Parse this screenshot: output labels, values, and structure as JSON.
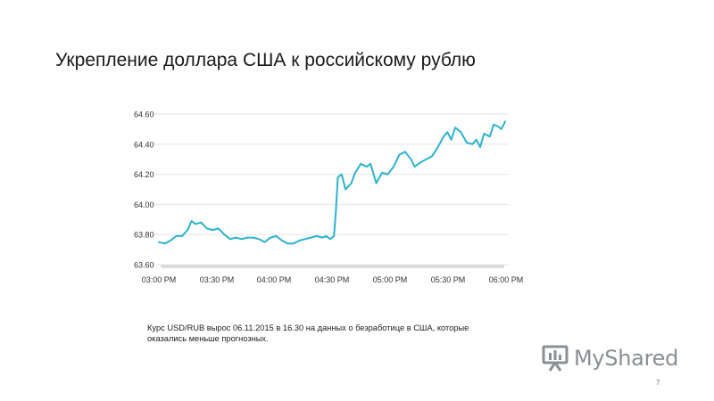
{
  "slide": {
    "title": "Укрепление доллара США к российскому рублю",
    "caption": "Курс USD/RUB вырос 06.11.2015 в 16.30 на данных о безработице в США, которые оказались меньше прогнозных.",
    "page_number": "7",
    "logo_text": "MyShared"
  },
  "colors": {
    "line": "#2bb3d1",
    "grid": "#e6e6e6",
    "text": "#333333",
    "scrollbar": "#dcdcdc"
  },
  "chart_data": {
    "type": "line",
    "title": "",
    "xlabel": "",
    "ylabel": "",
    "ylim": [
      63.6,
      64.6
    ],
    "yticks": [
      "64.60",
      "64.40",
      "64.20",
      "64.00",
      "63.80",
      "63.60"
    ],
    "xticks": [
      "03:00 PM",
      "03:30 PM",
      "04:00 PM",
      "04:30 PM",
      "05:00 PM",
      "05:30 PM",
      "06:00 PM"
    ],
    "grid": "horizontal",
    "x_start": "15:00",
    "series": [
      {
        "name": "",
        "points": [
          [
            "15:00",
            63.75
          ],
          [
            "15:03",
            63.74
          ],
          [
            "15:06",
            63.76
          ],
          [
            "15:09",
            63.79
          ],
          [
            "15:12",
            63.79
          ],
          [
            "15:15",
            63.83
          ],
          [
            "15:17",
            63.89
          ],
          [
            "15:19",
            63.87
          ],
          [
            "15:22",
            63.88
          ],
          [
            "15:25",
            63.84
          ],
          [
            "15:28",
            63.83
          ],
          [
            "15:31",
            63.84
          ],
          [
            "15:34",
            63.8
          ],
          [
            "15:37",
            63.77
          ],
          [
            "15:40",
            63.78
          ],
          [
            "15:43",
            63.77
          ],
          [
            "15:46",
            63.78
          ],
          [
            "15:49",
            63.78
          ],
          [
            "15:52",
            63.77
          ],
          [
            "15:55",
            63.75
          ],
          [
            "15:58",
            63.78
          ],
          [
            "16:01",
            63.79
          ],
          [
            "16:04",
            63.76
          ],
          [
            "16:07",
            63.74
          ],
          [
            "16:10",
            63.74
          ],
          [
            "16:13",
            63.76
          ],
          [
            "16:16",
            63.77
          ],
          [
            "16:19",
            63.78
          ],
          [
            "16:22",
            63.79
          ],
          [
            "16:25",
            63.78
          ],
          [
            "16:27",
            63.79
          ],
          [
            "16:29",
            63.77
          ],
          [
            "16:31",
            63.79
          ],
          [
            "16:32",
            63.95
          ],
          [
            "16:33",
            64.18
          ],
          [
            "16:35",
            64.2
          ],
          [
            "16:37",
            64.1
          ],
          [
            "16:40",
            64.14
          ],
          [
            "16:42",
            64.21
          ],
          [
            "16:45",
            64.27
          ],
          [
            "16:48",
            64.25
          ],
          [
            "16:50",
            64.27
          ],
          [
            "16:53",
            64.14
          ],
          [
            "16:56",
            64.21
          ],
          [
            "16:59",
            64.2
          ],
          [
            "17:02",
            64.25
          ],
          [
            "17:05",
            64.33
          ],
          [
            "17:08",
            64.35
          ],
          [
            "17:11",
            64.3
          ],
          [
            "17:13",
            64.25
          ],
          [
            "17:16",
            64.28
          ],
          [
            "17:19",
            64.3
          ],
          [
            "17:22",
            64.32
          ],
          [
            "17:25",
            64.38
          ],
          [
            "17:28",
            64.45
          ],
          [
            "17:30",
            64.48
          ],
          [
            "17:32",
            64.43
          ],
          [
            "17:34",
            64.51
          ],
          [
            "17:37",
            64.48
          ],
          [
            "17:40",
            64.41
          ],
          [
            "17:43",
            64.4
          ],
          [
            "17:45",
            64.43
          ],
          [
            "17:47",
            64.38
          ],
          [
            "17:49",
            64.47
          ],
          [
            "17:52",
            64.45
          ],
          [
            "17:54",
            64.53
          ],
          [
            "17:56",
            64.52
          ],
          [
            "17:58",
            64.5
          ],
          [
            "18:00",
            64.55
          ]
        ]
      }
    ]
  }
}
